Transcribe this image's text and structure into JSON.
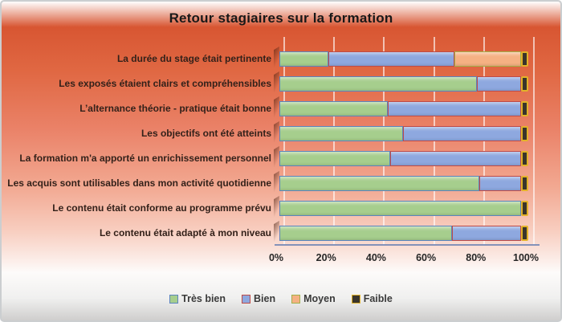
{
  "chart_data": {
    "type": "bar",
    "orientation": "horizontal-stacked-100",
    "title": "Retour stagiaires sur la formation",
    "categories": [
      "La durée du stage était pertinente",
      "Les exposés étaient clairs et compréhensibles",
      "L’alternance théorie - pratique était bonne",
      "Les objectifs ont été atteints",
      "La formation m'a apporté un enrichissement personnel",
      "Les acquis sont utilisables dans mon activité quotidienne",
      "Le contenu était conforme au programme prévu",
      "Le contenu était adapté à mon niveau"
    ],
    "series": [
      {
        "name": "Très bien",
        "fill": "#A6CE8D",
        "border": "#5B84BE",
        "values": [
          20,
          80,
          44,
          50,
          45,
          81,
          98,
          70
        ]
      },
      {
        "name": "Bien",
        "fill": "#8EA8DF",
        "border": "#BE4B48",
        "values": [
          51,
          18,
          54,
          48,
          53,
          17,
          0,
          28
        ]
      },
      {
        "name": "Moyen",
        "fill": "#F5B183",
        "border": "#A2B049",
        "values": [
          27,
          0,
          0,
          0,
          0,
          0,
          0,
          0
        ]
      },
      {
        "name": "Faible",
        "fill": "#39342B",
        "border": "#E2B229",
        "values": [
          2,
          2,
          2,
          2,
          2,
          2,
          2,
          2
        ]
      }
    ],
    "x_axis": {
      "min": 0,
      "max": 100,
      "ticks": [
        "0%",
        "20%",
        "40%",
        "60%",
        "80%",
        "100%"
      ]
    },
    "legend": {
      "position": "bottom",
      "entries": [
        "Très bien",
        "Bien",
        "Moyen",
        "Faible"
      ]
    },
    "grid": true,
    "background": {
      "top": "#D4502B",
      "bottom": "#CFCECD"
    }
  }
}
